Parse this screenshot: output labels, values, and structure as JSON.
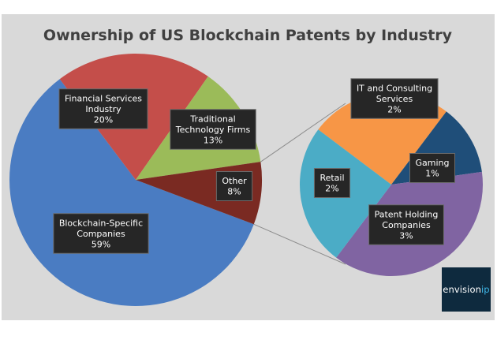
{
  "chart_data": {
    "type": "pie",
    "title": "Ownership of US Blockchain Patents by Industry",
    "background": "#d9d9d9",
    "main_pie": {
      "slices": [
        {
          "label_lines": [
            "Blockchain-Specific",
            "Companies"
          ],
          "pct_text": "59%",
          "value": 59,
          "color": "#4a7cc2"
        },
        {
          "label_lines": [
            "Financial  Services",
            "Industry"
          ],
          "pct_text": "20%",
          "value": 20,
          "color": "#c44e4a"
        },
        {
          "label_lines": [
            "Traditional",
            "Technology Firms"
          ],
          "pct_text": "13%",
          "value": 13,
          "color": "#9bbb59"
        },
        {
          "label_lines": [
            "Other"
          ],
          "pct_text": "8%",
          "value": 8,
          "color": "#7a2a22"
        }
      ]
    },
    "sub_pie": {
      "parent": "Other",
      "slices": [
        {
          "label_lines": [
            "IT and Consulting",
            "Services"
          ],
          "pct_text": "2%",
          "value": 2,
          "color": "#f79646"
        },
        {
          "label_lines": [
            "Gaming"
          ],
          "pct_text": "1%",
          "value": 1,
          "color": "#1f4e79"
        },
        {
          "label_lines": [
            "Patent Holding",
            "Companies"
          ],
          "pct_text": "3%",
          "value": 3,
          "color": "#8064a2"
        },
        {
          "label_lines": [
            "Retail"
          ],
          "pct_text": "2%",
          "value": 2,
          "color": "#4bacc6"
        }
      ]
    }
  },
  "logo": {
    "text_main": "envision",
    "text_accent": "ip",
    "bg_color": "#0e2a3e",
    "accent_color": "#3fb7e8"
  }
}
